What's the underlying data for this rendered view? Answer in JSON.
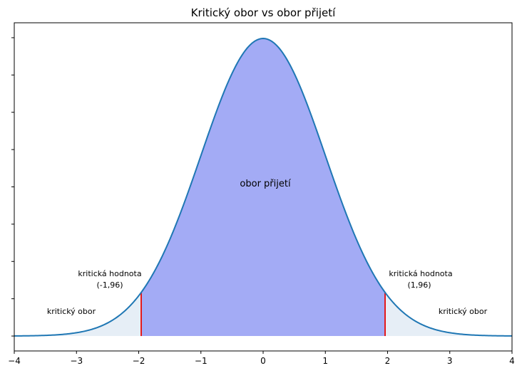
{
  "chart_data": {
    "type": "area",
    "title": "Kritický obor vs obor přijetí",
    "xlabel": "",
    "ylabel": "",
    "xlim": [
      -4,
      4
    ],
    "ylim": [
      -0.02,
      0.42
    ],
    "x_ticks": [
      -4,
      -3,
      -2,
      -1,
      0,
      1,
      2,
      3,
      4
    ],
    "x_tick_labels": [
      "−4",
      "−3",
      "−2",
      "−1",
      "0",
      "1",
      "2",
      "3",
      "4"
    ],
    "y_ticks": [
      0,
      0.05,
      0.1,
      0.15,
      0.2,
      0.25,
      0.3,
      0.35,
      0.4
    ],
    "y_tick_labels_visible": false,
    "grid": false,
    "curve": {
      "distribution": "standard-normal",
      "mean": 0,
      "sd": 1,
      "color": "#1f77b4"
    },
    "critical_values": [
      -1.96,
      1.96
    ],
    "critical_line_color": "#e41a1c",
    "regions": [
      {
        "name": "critical-left",
        "from": -4,
        "to": -1.96,
        "color": "#e6eef6"
      },
      {
        "name": "acceptance",
        "from": -1.96,
        "to": 1.96,
        "color": "#a3abf5"
      },
      {
        "name": "critical-right",
        "from": 1.96,
        "to": 4,
        "color": "#e6eef6"
      }
    ],
    "annotations": {
      "acceptance": "obor přijetí",
      "critical_left": "kritický obor",
      "critical_right": "kritický obor",
      "crit_left_line1": "kritická hodnota",
      "crit_left_line2": "(-1,96)",
      "crit_right_line1": "kritická hodnota",
      "crit_right_line2": "(1,96)"
    }
  }
}
